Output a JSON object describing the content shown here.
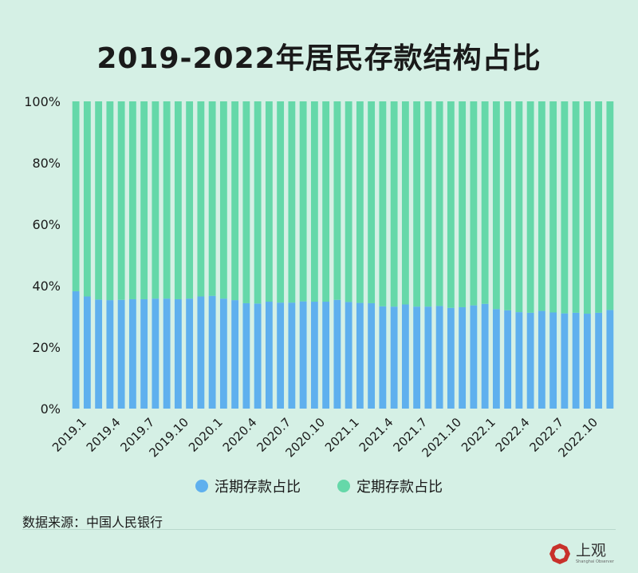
{
  "title": "2019-2022年居民存款结构占比",
  "legend": {
    "demand_label": "活期存款占比",
    "time_label": "定期存款占比"
  },
  "source": "数据来源：中国人民银行",
  "logo": {
    "main": "上观",
    "sub": "Shanghai Observer"
  },
  "colors": {
    "demand": "#5fb0ee",
    "time": "#65d8a9",
    "background": "#d5f0e5"
  },
  "chart_data": {
    "type": "bar",
    "stacked": true,
    "normalized": true,
    "ylim": [
      0,
      100
    ],
    "yticks": [
      "0%",
      "20%",
      "40%",
      "60%",
      "80%",
      "100%"
    ],
    "grid": false,
    "legend_position": "bottom",
    "categories": [
      "2019.1",
      "2019.2",
      "2019.3",
      "2019.4",
      "2019.5",
      "2019.6",
      "2019.7",
      "2019.8",
      "2019.9",
      "2019.10",
      "2019.11",
      "2019.12",
      "2020.1",
      "2020.2",
      "2020.3",
      "2020.4",
      "2020.5",
      "2020.6",
      "2020.7",
      "2020.8",
      "2020.9",
      "2020.10",
      "2020.11",
      "2020.12",
      "2021.1",
      "2021.2",
      "2021.3",
      "2021.4",
      "2021.5",
      "2021.6",
      "2021.7",
      "2021.8",
      "2021.9",
      "2021.10",
      "2021.11",
      "2021.12",
      "2022.1",
      "2022.2",
      "2022.3",
      "2022.4",
      "2022.5",
      "2022.6",
      "2022.7",
      "2022.8",
      "2022.9",
      "2022.10",
      "2022.11",
      "2022.12"
    ],
    "tick_labels": [
      "2019.1",
      "2019.4",
      "2019.7",
      "2019.10",
      "2020.1",
      "2020.4",
      "2020.7",
      "2020.10",
      "2021.1",
      "2021.4",
      "2021.7",
      "2021.10",
      "2022.1",
      "2022.4",
      "2022.7",
      "2022.10"
    ],
    "series": [
      {
        "name": "活期存款占比",
        "values": [
          38.2,
          36.5,
          35.5,
          35.3,
          35.4,
          35.6,
          35.6,
          35.8,
          35.8,
          35.6,
          35.8,
          36.5,
          36.7,
          35.8,
          35.3,
          34.3,
          34.2,
          34.8,
          34.5,
          34.5,
          34.9,
          34.8,
          34.8,
          35.4,
          34.7,
          34.4,
          34.3,
          33.3,
          33.2,
          33.9,
          33.2,
          33.2,
          33.4,
          32.8,
          33.0,
          33.6,
          34.1,
          32.4,
          32.0,
          31.4,
          31.2,
          31.8,
          31.3,
          31.0,
          31.2,
          30.9,
          31.2,
          32.1
        ]
      },
      {
        "name": "定期存款占比",
        "values": [
          61.8,
          63.5,
          64.5,
          64.7,
          64.6,
          64.4,
          64.4,
          64.2,
          64.2,
          64.4,
          64.2,
          63.5,
          63.3,
          64.2,
          64.7,
          65.7,
          65.8,
          65.2,
          65.5,
          65.5,
          65.1,
          65.2,
          65.2,
          64.6,
          65.3,
          65.6,
          65.7,
          66.7,
          66.8,
          66.1,
          66.8,
          66.8,
          66.6,
          67.2,
          67.0,
          66.4,
          65.9,
          67.6,
          68.0,
          68.6,
          68.8,
          68.2,
          68.7,
          69.0,
          68.8,
          69.1,
          68.8,
          67.9
        ]
      }
    ]
  }
}
